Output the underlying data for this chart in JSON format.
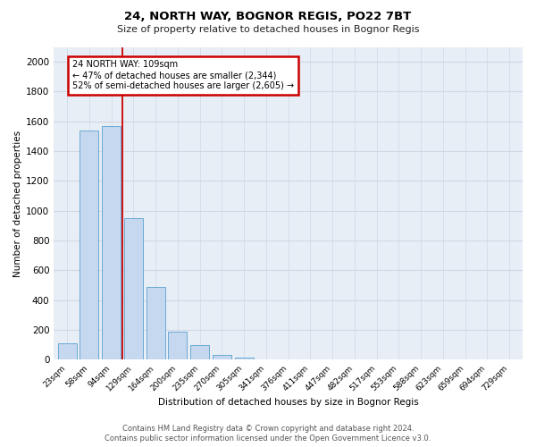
{
  "title": "24, NORTH WAY, BOGNOR REGIS, PO22 7BT",
  "subtitle": "Size of property relative to detached houses in Bognor Regis",
  "xlabel": "Distribution of detached houses by size in Bognor Regis",
  "ylabel": "Number of detached properties",
  "bar_labels": [
    "23sqm",
    "58sqm",
    "94sqm",
    "129sqm",
    "164sqm",
    "200sqm",
    "235sqm",
    "270sqm",
    "305sqm",
    "341sqm",
    "376sqm",
    "411sqm",
    "447sqm",
    "482sqm",
    "517sqm",
    "553sqm",
    "588sqm",
    "623sqm",
    "659sqm",
    "694sqm",
    "729sqm"
  ],
  "bar_values": [
    110,
    1540,
    1570,
    950,
    490,
    190,
    100,
    35,
    15,
    0,
    0,
    0,
    0,
    0,
    0,
    0,
    0,
    0,
    0,
    0,
    0
  ],
  "bar_color": "#c5d8ef",
  "bar_edge_color": "#6aaad4",
  "ylim": [
    0,
    2100
  ],
  "yticks": [
    0,
    200,
    400,
    600,
    800,
    1000,
    1200,
    1400,
    1600,
    1800,
    2000
  ],
  "red_line_x": 2.5,
  "annotation_line1": "24 NORTH WAY: 109sqm",
  "annotation_line2": "← 47% of detached houses are smaller (2,344)",
  "annotation_line3": "52% of semi-detached houses are larger (2,605) →",
  "annotation_box_color": "#ffffff",
  "annotation_box_edge": "#cc0000",
  "footnote1": "Contains HM Land Registry data © Crown copyright and database right 2024.",
  "footnote2": "Contains public sector information licensed under the Open Government Licence v3.0.",
  "plot_bg_color": "#e8eef5",
  "grid_color": "#d0d8e4",
  "fig_bg_color": "#ffffff"
}
